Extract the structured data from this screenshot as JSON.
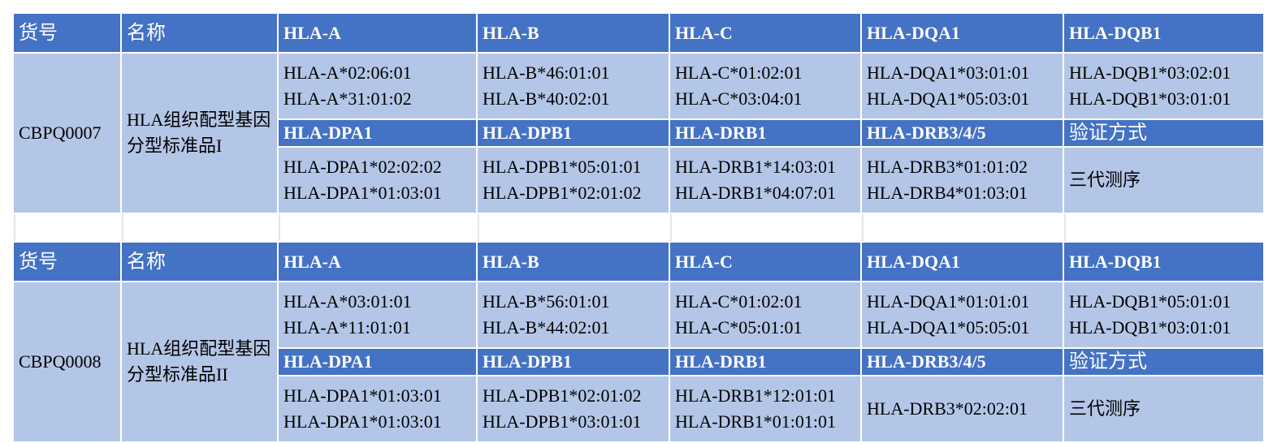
{
  "colors": {
    "header": "#4472C4",
    "cell": "#B4C6E7"
  },
  "products": [
    {
      "headers": [
        "货号",
        "名称",
        "HLA-A",
        "HLA-B",
        "HLA-C",
        "HLA-DQA1",
        "HLA-DQB1"
      ],
      "code": "CBPQ0007",
      "name": "HLA组织配型基因分型标准品I",
      "row1": [
        [
          "HLA-A*02:06:01",
          "HLA-A*31:01:02"
        ],
        [
          "HLA-B*46:01:01",
          "HLA-B*40:02:01"
        ],
        [
          "HLA-C*01:02:01",
          "HLA-C*03:04:01"
        ],
        [
          "HLA-DQA1*03:01:01",
          "HLA-DQA1*05:03:01"
        ],
        [
          "HLA-DQB1*03:02:01",
          "HLA-DQB1*03:01:01"
        ]
      ],
      "subheaders": [
        "HLA-DPA1",
        "HLA-DPB1",
        "HLA-DRB1",
        "HLA-DRB3/4/5",
        "验证方式"
      ],
      "row2": [
        [
          "HLA-DPA1*02:02:02",
          "HLA-DPA1*01:03:01"
        ],
        [
          "HLA-DPB1*05:01:01",
          "HLA-DPB1*02:01:02"
        ],
        [
          "HLA-DRB1*14:03:01",
          "HLA-DRB1*04:07:01"
        ],
        [
          "HLA-DRB3*01:01:02",
          "HLA-DRB4*01:03:01"
        ],
        [
          "三代测序"
        ]
      ]
    },
    {
      "headers": [
        "货号",
        "名称",
        "HLA-A",
        "HLA-B",
        "HLA-C",
        "HLA-DQA1",
        "HLA-DQB1"
      ],
      "code": "CBPQ0008",
      "name": "HLA组织配型基因分型标准品II",
      "row1": [
        [
          "HLA-A*03:01:01",
          "HLA-A*11:01:01"
        ],
        [
          "HLA-B*56:01:01",
          "HLA-B*44:02:01"
        ],
        [
          "HLA-C*01:02:01",
          "HLA-C*05:01:01"
        ],
        [
          "HLA-DQA1*01:01:01",
          "HLA-DQA1*05:05:01"
        ],
        [
          "HLA-DQB1*05:01:01",
          "HLA-DQB1*03:01:01"
        ]
      ],
      "subheaders": [
        "HLA-DPA1",
        "HLA-DPB1",
        "HLA-DRB1",
        "HLA-DRB3/4/5",
        "验证方式"
      ],
      "row2": [
        [
          "HLA-DPA1*01:03:01",
          "HLA-DPA1*01:03:01"
        ],
        [
          "HLA-DPB1*02:01:02",
          "HLA-DPB1*03:01:01"
        ],
        [
          "HLA-DRB1*12:01:01",
          "HLA-DRB1*01:01:01"
        ],
        [
          "HLA-DRB3*02:02:01"
        ],
        [
          "三代测序"
        ]
      ]
    }
  ]
}
